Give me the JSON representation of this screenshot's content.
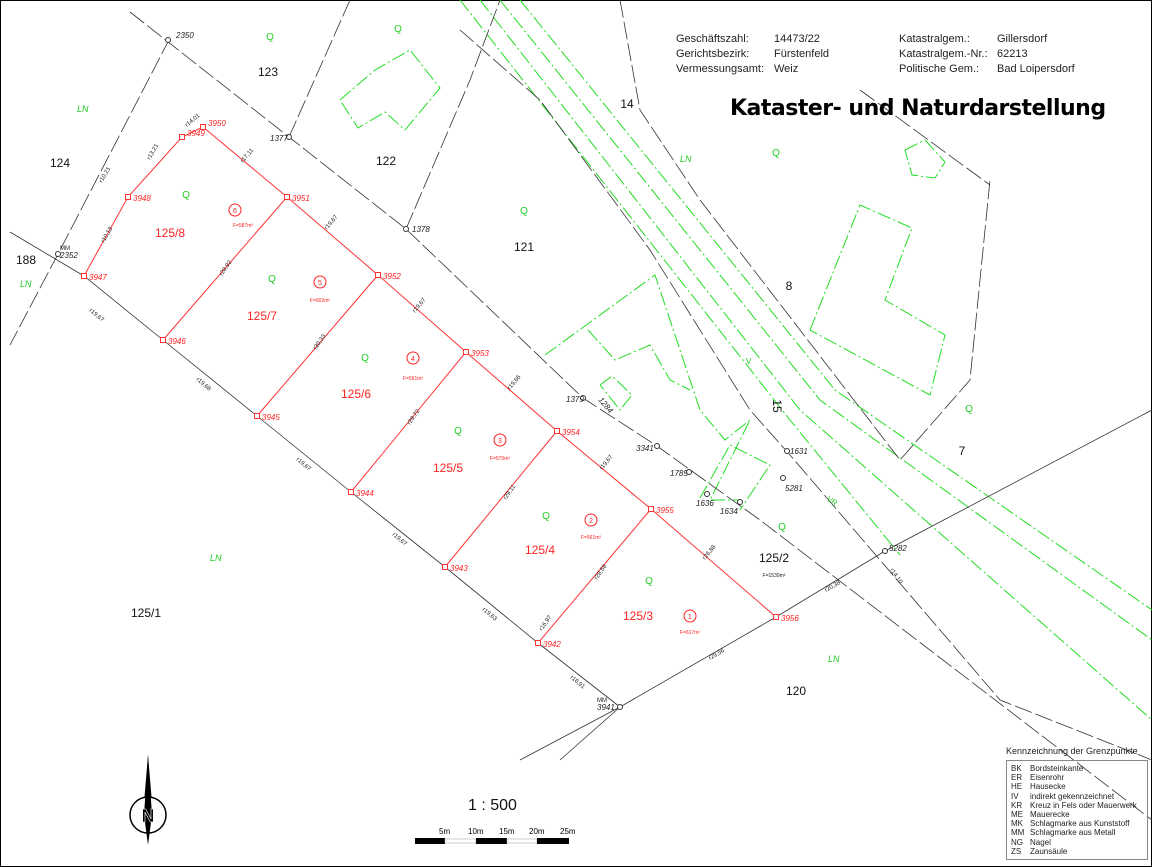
{
  "header": {
    "fields": [
      {
        "label": "Geschäftszahl:",
        "value": "14473/22"
      },
      {
        "label": "Gerichtsbezirk:",
        "value": "Fürstenfeld"
      },
      {
        "label": "Vermessungsamt:",
        "value": "Weiz"
      },
      {
        "label": "Katastralgem.:",
        "value": "Gillersdorf"
      },
      {
        "label": "Katastralgem.-Nr.:",
        "value": "62213"
      },
      {
        "label": "Politische Gem.:",
        "value": "Bad Loipersdorf"
      }
    ],
    "title": "Kataster- und Naturdarstellung"
  },
  "colors": {
    "new_boundary": "#ff0000",
    "existing": "#222222",
    "nature": "#00cc00"
  },
  "new_parcels": [
    {
      "number": "125/8",
      "index": "6",
      "area": "F=587m²"
    },
    {
      "number": "125/7",
      "index": "5",
      "area": "F=602m²"
    },
    {
      "number": "125/6",
      "index": "4",
      "area": "F=591m²"
    },
    {
      "number": "125/5",
      "index": "3",
      "area": "F=570m²"
    },
    {
      "number": "125/4",
      "index": "2",
      "area": "F=561m²"
    },
    {
      "number": "125/3",
      "index": "1",
      "area": "F=617m²"
    }
  ],
  "existing_parcels": [
    "123",
    "124",
    "122",
    "121",
    "188",
    "8",
    "7",
    "15",
    "14",
    "125/2",
    "125/1",
    "120"
  ],
  "parcel_125_2_area": "F=1539m²",
  "new_points": [
    "3950",
    "3949",
    "3948",
    "3947",
    "3951",
    "3952",
    "3953",
    "3954",
    "3955",
    "3956",
    "3946",
    "3945",
    "3944",
    "3943",
    "3942"
  ],
  "existing_points": [
    "3941",
    "2352",
    "1377",
    "1378",
    "1379",
    "3341",
    "1785",
    "1636",
    "1634",
    "1631",
    "5281",
    "5282",
    "2350",
    "1284"
  ],
  "point_marks": [
    "MM",
    "MM"
  ],
  "dimensions": [
    "r17,11",
    "r19,67",
    "r19,67",
    "r19,66",
    "r19,67",
    "r26,88",
    "r10,21",
    "r13,21",
    "r14,01",
    "r10,13",
    "r19,67",
    "r19,68",
    "r19,67",
    "r19,67",
    "r19,63",
    "r16,91",
    "r28,92",
    "r30,33",
    "r29,72",
    "r29,11",
    "r28,58",
    "r16,97",
    "r29,56",
    "r20,38",
    "r14,10"
  ],
  "landuse": {
    "meadow": "LN",
    "source": "Q",
    "vr": "VR",
    "v": "V"
  },
  "legend": {
    "title": "Kennzeichnung der Grenzpunkte",
    "items": [
      {
        "code": "BK",
        "text": "Bordsteinkante"
      },
      {
        "code": "ER",
        "text": "Eisenrohr"
      },
      {
        "code": "HE",
        "text": "Hausecke"
      },
      {
        "code": "IV",
        "text": "indirekt gekennzeichnet"
      },
      {
        "code": "KR",
        "text": "Kreuz in Fels oder Mauerwerk"
      },
      {
        "code": "ME",
        "text": "Mauerecke"
      },
      {
        "code": "MK",
        "text": "Schlagmarke aus Kunststoff"
      },
      {
        "code": "MM",
        "text": "Schlagmarke aus Metall"
      },
      {
        "code": "NG",
        "text": "Nagel"
      },
      {
        "code": "ZS",
        "text": "Zaunsäule"
      }
    ]
  },
  "scale": {
    "ratio": "1 : 500",
    "ticks": [
      "5m",
      "10m",
      "15m",
      "20m",
      "25m"
    ]
  },
  "north": {
    "label": "N"
  }
}
